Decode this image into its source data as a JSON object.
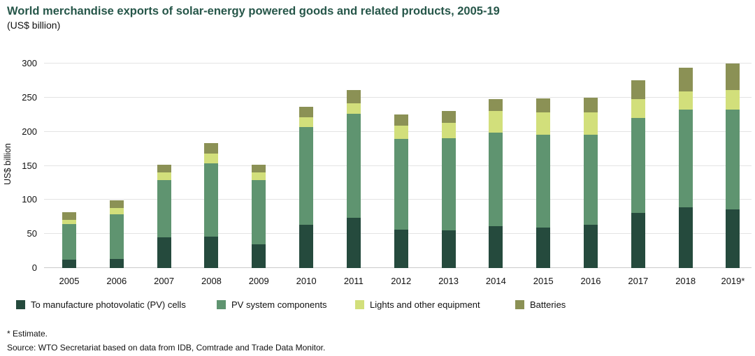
{
  "header": {
    "title": "World merchandise exports of solar-energy powered goods and related products, 2005-19",
    "subtitle": "(US$ billion)"
  },
  "chart_data": {
    "type": "bar",
    "stacked": true,
    "title": "World merchandise exports of solar-energy powered goods and related products, 2005-19",
    "subtitle": "(US$ billion)",
    "xlabel": "",
    "ylabel": "US$ billion",
    "ylim": [
      0,
      300
    ],
    "yticks": [
      0,
      50,
      100,
      150,
      200,
      250,
      300
    ],
    "grid": true,
    "legend_position": "bottom",
    "categories": [
      "2005",
      "2006",
      "2007",
      "2008",
      "2009",
      "2010",
      "2011",
      "2012",
      "2013",
      "2014",
      "2015",
      "2016",
      "2017",
      "2018",
      "2019*"
    ],
    "series": [
      {
        "name": "To manufacture photovolatic (PV) cells",
        "color": "#254a3d",
        "values": [
          12,
          13,
          45,
          46,
          35,
          63,
          74,
          56,
          55,
          61,
          59,
          64,
          81,
          89,
          86
        ]
      },
      {
        "name": "PV system components",
        "color": "#5f9470",
        "values": [
          53,
          66,
          84,
          108,
          94,
          144,
          152,
          133,
          135,
          138,
          137,
          132,
          139,
          143,
          146
        ]
      },
      {
        "name": "Lights and other equipment",
        "color": "#d2df7b",
        "values": [
          6,
          9,
          11,
          14,
          11,
          14,
          16,
          20,
          23,
          31,
          32,
          32,
          28,
          27,
          29
        ]
      },
      {
        "name": "Batteries",
        "color": "#8b9155",
        "values": [
          11,
          11,
          12,
          15,
          12,
          16,
          19,
          16,
          17,
          18,
          21,
          22,
          27,
          35,
          39
        ]
      }
    ]
  },
  "footnotes": {
    "estimate": "* Estimate.",
    "source": "Source: WTO Secretariat based on data from IDB, Comtrade and Trade Data Monitor."
  }
}
